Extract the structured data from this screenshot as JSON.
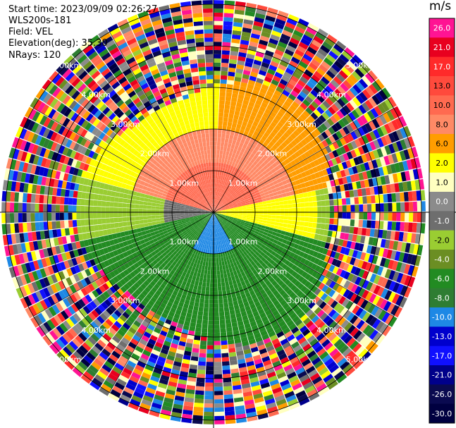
{
  "header": {
    "start_time": "Start time: 2023/09/09 02:26:27",
    "instrument": "WLS200s-181",
    "field": "Field: VEL",
    "elevation": "Elevation(deg): 35.30",
    "nrays": "NRays: 120"
  },
  "colorbar": {
    "unit": "m/s",
    "bins": [
      {
        "label": "26.0",
        "color": "#ff1493"
      },
      {
        "label": "21.0",
        "color": "#e8001f"
      },
      {
        "label": "17.0",
        "color": "#ff2a2a"
      },
      {
        "label": "13.0",
        "color": "#ff4a3c"
      },
      {
        "label": "10.0",
        "color": "#ff6a50"
      },
      {
        "label": "8.0",
        "color": "#ff8a66"
      },
      {
        "label": "6.0",
        "color": "#ff9d00"
      },
      {
        "label": "2.0",
        "color": "#ffff00"
      },
      {
        "label": "1.0",
        "color": "#ffffc0"
      },
      {
        "label": "0.0",
        "color": "#8b8b8b"
      },
      {
        "label": "-1.0",
        "color": "#6e6e6e"
      },
      {
        "label": "-2.0",
        "color": "#9acd32"
      },
      {
        "label": "-4.0",
        "color": "#6b8e23"
      },
      {
        "label": "-6.0",
        "color": "#228b22"
      },
      {
        "label": "-8.0",
        "color": "#2e7d32"
      },
      {
        "label": "-10.0",
        "color": "#1e88e5"
      },
      {
        "label": "-13.0",
        "color": "#0000cd"
      },
      {
        "label": "-17.0",
        "color": "#1010ff"
      },
      {
        "label": "-21.0",
        "color": "#00008b"
      },
      {
        "label": "-26.0",
        "color": "#0a0a50"
      },
      {
        "label": "-30.0",
        "color": "#000040"
      }
    ]
  },
  "chart_data": {
    "type": "heatmap",
    "projection": "polar PPI",
    "field": "VEL",
    "units": "m/s",
    "rays": 120,
    "range_rings_km": [
      1.0,
      2.0,
      3.0,
      4.0,
      5.0
    ],
    "ring_labels": [
      "1.00km",
      "2.00km",
      "3.00km",
      "4.00km",
      "5.00km"
    ],
    "color_scale": [
      -30,
      -26,
      -21,
      -17,
      -13,
      -10,
      -8,
      -6,
      -4,
      -2,
      -1,
      0,
      1,
      2,
      6,
      8,
      10,
      13,
      17,
      21,
      26
    ],
    "pattern": {
      "inner_0_1km_north": 10,
      "inner_1_2km_north": 8,
      "inner_south_0_1km": -10,
      "inner_south_1_3km": -6,
      "east_0_2km": 2,
      "west_1_2km": -2,
      "clutter_beyond_km": 3.0
    }
  }
}
